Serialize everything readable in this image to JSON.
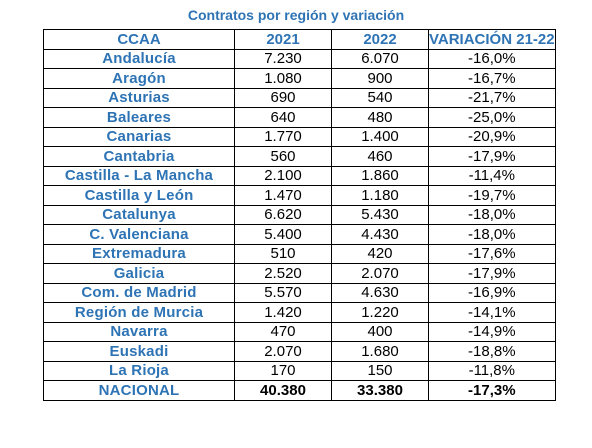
{
  "chart_data": {
    "type": "table",
    "title": "Contratos por región y variación",
    "columns": [
      "CCAA",
      "2021",
      "2022",
      "VARIACIÓN 21-22"
    ],
    "rows": [
      {
        "region": "Andalucía",
        "y2021": "7.230",
        "y2022": "6.070",
        "variation": "-16,0%"
      },
      {
        "region": "Aragón",
        "y2021": "1.080",
        "y2022": "900",
        "variation": "-16,7%"
      },
      {
        "region": "Asturias",
        "y2021": "690",
        "y2022": "540",
        "variation": "-21,7%"
      },
      {
        "region": "Baleares",
        "y2021": "640",
        "y2022": "480",
        "variation": "-25,0%"
      },
      {
        "region": "Canarias",
        "y2021": "1.770",
        "y2022": "1.400",
        "variation": "-20,9%"
      },
      {
        "region": "Cantabria",
        "y2021": "560",
        "y2022": "460",
        "variation": "-17,9%"
      },
      {
        "region": "Castilla - La Mancha",
        "y2021": "2.100",
        "y2022": "1.860",
        "variation": "-11,4%"
      },
      {
        "region": "Castilla y León",
        "y2021": "1.470",
        "y2022": "1.180",
        "variation": "-19,7%"
      },
      {
        "region": "Catalunya",
        "y2021": "6.620",
        "y2022": "5.430",
        "variation": "-18,0%"
      },
      {
        "region": "C. Valenciana",
        "y2021": "5.400",
        "y2022": "4.430",
        "variation": "-18,0%"
      },
      {
        "region": "Extremadura",
        "y2021": "510",
        "y2022": "420",
        "variation": "-17,6%"
      },
      {
        "region": "Galicia",
        "y2021": "2.520",
        "y2022": "2.070",
        "variation": "-17,9%"
      },
      {
        "region": "Com. de Madrid",
        "y2021": "5.570",
        "y2022": "4.630",
        "variation": "-16,9%"
      },
      {
        "region": "Región de Murcia",
        "y2021": "1.420",
        "y2022": "1.220",
        "variation": "-14,1%"
      },
      {
        "region": "Navarra",
        "y2021": "470",
        "y2022": "400",
        "variation": "-14,9%"
      },
      {
        "region": "Euskadi",
        "y2021": "2.070",
        "y2022": "1.680",
        "variation": "-18,8%"
      },
      {
        "region": "La Rioja",
        "y2021": "170",
        "y2022": "150",
        "variation": "-11,8%"
      }
    ],
    "total": {
      "region": "NACIONAL",
      "y2021": "40.380",
      "y2022": "33.380",
      "variation": "-17,3%"
    },
    "colors": {
      "header_text": "#2e74b5",
      "region_text": "#2e74b5",
      "value_text": "#000000",
      "border": "#000000"
    }
  }
}
